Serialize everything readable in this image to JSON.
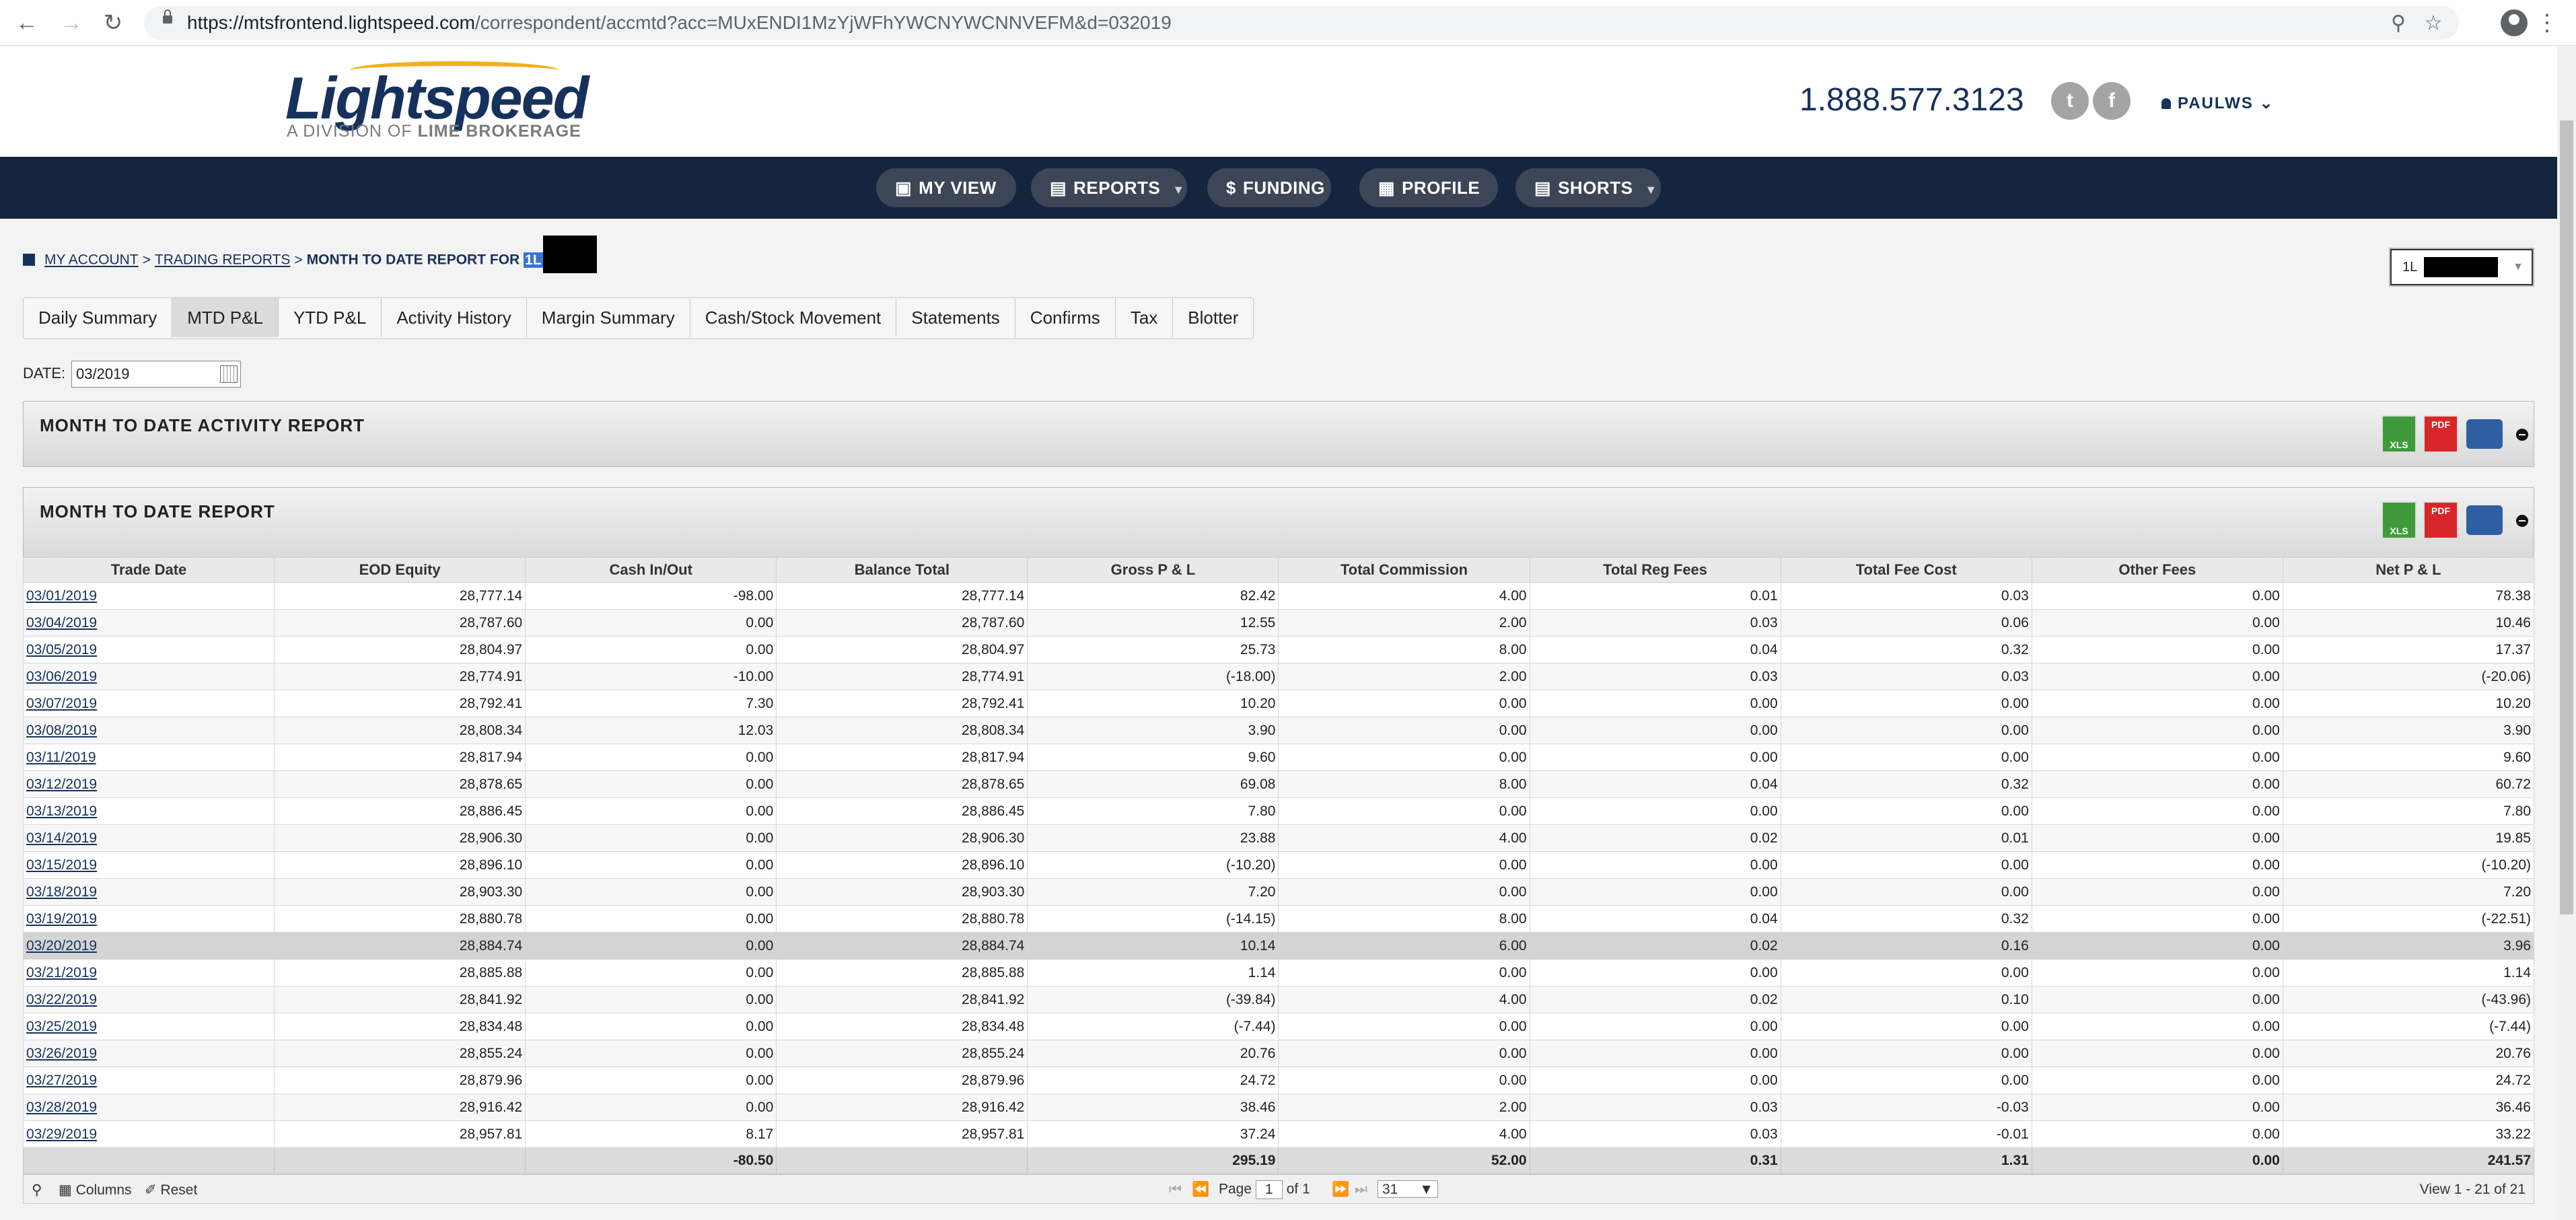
{
  "browser": {
    "url_host": "https://mtsfrontend.lightspeed.com",
    "url_path": "/correspondent/accmtd?acc=MUxENDI1MzYjWFhYWCNYWCNNVEFM&d=032019"
  },
  "header": {
    "logo_text": "Lightspeed",
    "logo_sub_a": "A DIVISION OF ",
    "logo_sub_b": "LIME BROKERAGE",
    "phone": "1.888.577.3123",
    "user": "PAULWS"
  },
  "nav": [
    {
      "label": "MY VIEW",
      "icon": "binoculars-icon"
    },
    {
      "label": "REPORTS",
      "icon": "report-icon"
    },
    {
      "label": "FUNDING",
      "icon": "dollar-icon"
    },
    {
      "label": "PROFILE",
      "icon": "chart-icon"
    },
    {
      "label": "SHORTS",
      "icon": "report-icon"
    }
  ],
  "breadcrumb": {
    "my_account": "MY ACCOUNT",
    "trading_reports": "TRADING REPORTS",
    "current": "MONTH TO DATE REPORT FOR",
    "selected": "1L"
  },
  "account_select": {
    "value": "1L"
  },
  "tabs": [
    "Daily Summary",
    "MTD P&L",
    "YTD P&L",
    "Activity History",
    "Margin Summary",
    "Cash/Stock Movement",
    "Statements",
    "Confirms",
    "Tax",
    "Blotter"
  ],
  "date": {
    "label": "DATE:",
    "value": "03/2019"
  },
  "panels": {
    "activity_title": "MONTH TO DATE ACTIVITY REPORT",
    "report_title": "MONTH TO DATE REPORT",
    "xls": "XLS",
    "pdf": "PDF"
  },
  "table": {
    "columns": [
      "Trade Date",
      "EOD Equity",
      "Cash In/Out",
      "Balance Total",
      "Gross P & L",
      "Total Commission",
      "Total Reg Fees",
      "Total Fee Cost",
      "Other Fees",
      "Net P & L"
    ],
    "rows": [
      [
        "03/01/2019",
        "28,777.14",
        "-98.00",
        "28,777.14",
        "82.42",
        "4.00",
        "0.01",
        "0.03",
        "0.00",
        "78.38"
      ],
      [
        "03/04/2019",
        "28,787.60",
        "0.00",
        "28,787.60",
        "12.55",
        "2.00",
        "0.03",
        "0.06",
        "0.00",
        "10.46"
      ],
      [
        "03/05/2019",
        "28,804.97",
        "0.00",
        "28,804.97",
        "25.73",
        "8.00",
        "0.04",
        "0.32",
        "0.00",
        "17.37"
      ],
      [
        "03/06/2019",
        "28,774.91",
        "-10.00",
        "28,774.91",
        "(-18.00)",
        "2.00",
        "0.03",
        "0.03",
        "0.00",
        "(-20.06)"
      ],
      [
        "03/07/2019",
        "28,792.41",
        "7.30",
        "28,792.41",
        "10.20",
        "0.00",
        "0.00",
        "0.00",
        "0.00",
        "10.20"
      ],
      [
        "03/08/2019",
        "28,808.34",
        "12.03",
        "28,808.34",
        "3.90",
        "0.00",
        "0.00",
        "0.00",
        "0.00",
        "3.90"
      ],
      [
        "03/11/2019",
        "28,817.94",
        "0.00",
        "28,817.94",
        "9.60",
        "0.00",
        "0.00",
        "0.00",
        "0.00",
        "9.60"
      ],
      [
        "03/12/2019",
        "28,878.65",
        "0.00",
        "28,878.65",
        "69.08",
        "8.00",
        "0.04",
        "0.32",
        "0.00",
        "60.72"
      ],
      [
        "03/13/2019",
        "28,886.45",
        "0.00",
        "28,886.45",
        "7.80",
        "0.00",
        "0.00",
        "0.00",
        "0.00",
        "7.80"
      ],
      [
        "03/14/2019",
        "28,906.30",
        "0.00",
        "28,906.30",
        "23.88",
        "4.00",
        "0.02",
        "0.01",
        "0.00",
        "19.85"
      ],
      [
        "03/15/2019",
        "28,896.10",
        "0.00",
        "28,896.10",
        "(-10.20)",
        "0.00",
        "0.00",
        "0.00",
        "0.00",
        "(-10.20)"
      ],
      [
        "03/18/2019",
        "28,903.30",
        "0.00",
        "28,903.30",
        "7.20",
        "0.00",
        "0.00",
        "0.00",
        "0.00",
        "7.20"
      ],
      [
        "03/19/2019",
        "28,880.78",
        "0.00",
        "28,880.78",
        "(-14.15)",
        "8.00",
        "0.04",
        "0.32",
        "0.00",
        "(-22.51)"
      ],
      [
        "03/20/2019",
        "28,884.74",
        "0.00",
        "28,884.74",
        "10.14",
        "6.00",
        "0.02",
        "0.16",
        "0.00",
        "3.96"
      ],
      [
        "03/21/2019",
        "28,885.88",
        "0.00",
        "28,885.88",
        "1.14",
        "0.00",
        "0.00",
        "0.00",
        "0.00",
        "1.14"
      ],
      [
        "03/22/2019",
        "28,841.92",
        "0.00",
        "28,841.92",
        "(-39.84)",
        "4.00",
        "0.02",
        "0.10",
        "0.00",
        "(-43.96)"
      ],
      [
        "03/25/2019",
        "28,834.48",
        "0.00",
        "28,834.48",
        "(-7.44)",
        "0.00",
        "0.00",
        "0.00",
        "0.00",
        "(-7.44)"
      ],
      [
        "03/26/2019",
        "28,855.24",
        "0.00",
        "28,855.24",
        "20.76",
        "0.00",
        "0.00",
        "0.00",
        "0.00",
        "20.76"
      ],
      [
        "03/27/2019",
        "28,879.96",
        "0.00",
        "28,879.96",
        "24.72",
        "0.00",
        "0.00",
        "0.00",
        "0.00",
        "24.72"
      ],
      [
        "03/28/2019",
        "28,916.42",
        "0.00",
        "28,916.42",
        "38.46",
        "2.00",
        "0.03",
        "-0.03",
        "0.00",
        "36.46"
      ],
      [
        "03/29/2019",
        "28,957.81",
        "8.17",
        "28,957.81",
        "37.24",
        "4.00",
        "0.03",
        "-0.01",
        "0.00",
        "33.22"
      ]
    ],
    "totals": [
      "",
      "",
      "-80.50",
      "",
      "295.19",
      "52.00",
      "0.31",
      "1.31",
      "0.00",
      "241.57"
    ],
    "highlight_row": 13,
    "colors": {
      "positive": "#1e8a1e",
      "negative": "#d40000"
    }
  },
  "pager": {
    "columns_label": "Columns",
    "reset_label": "Reset",
    "page_label": "Page",
    "page_value": "1",
    "of_label": "of 1",
    "rows_per_page": "31",
    "view_info": "View 1 - 21 of 21"
  }
}
